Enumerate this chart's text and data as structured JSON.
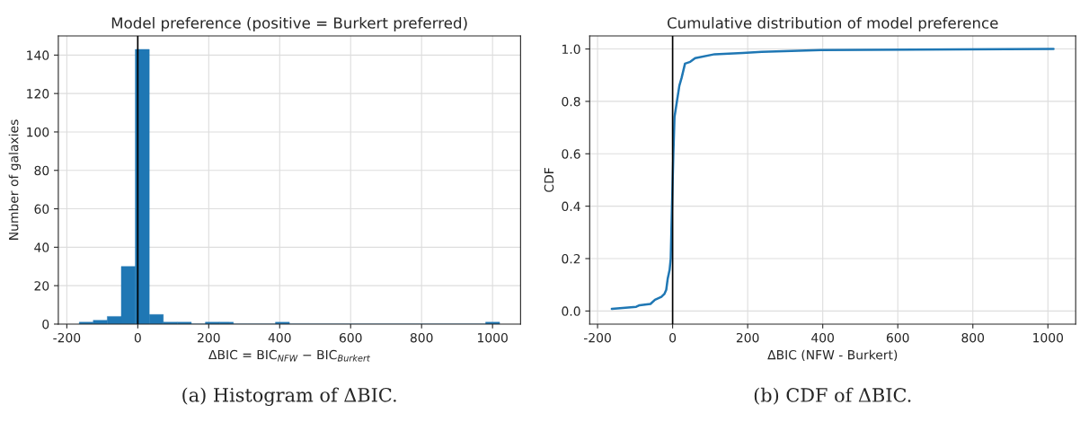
{
  "chart_data": [
    {
      "type": "histogram",
      "title": "Model preference (positive = Burkert preferred)",
      "xlabel": "ΔBIC = BIC$_{NFW}$ − BIC$_{Burkert}$",
      "ylabel": "Number of galaxies",
      "bins": [
        -165,
        -125.5,
        -86,
        -46.5,
        -7,
        32.5,
        72,
        111.5,
        151,
        190.5,
        230,
        269.5,
        309,
        348.5,
        388,
        427.5,
        467,
        506.5,
        546,
        585.5,
        625,
        664.5,
        704,
        743.5,
        783,
        822.5,
        862,
        901.5,
        941,
        980.5,
        1020
      ],
      "values": [
        1,
        2,
        4,
        30,
        143,
        5,
        1,
        1,
        0,
        1,
        1,
        0,
        0,
        0,
        1,
        0,
        0,
        0,
        0,
        0,
        0,
        0,
        0,
        0,
        0,
        0,
        0,
        0,
        0,
        1
      ],
      "color": "#1f77b4",
      "xlim": [
        -224,
        1079
      ],
      "ylim": [
        0,
        150
      ],
      "xticks": [
        -200,
        0,
        200,
        400,
        600,
        800,
        1000
      ],
      "yticks": [
        0,
        20,
        40,
        60,
        80,
        100,
        120,
        140
      ],
      "grid": true,
      "ref_lines": [
        {
          "axis": "x",
          "value": 0,
          "color": "#000000"
        }
      ],
      "annotations": [
        "(a) Histogram of ΔBIC."
      ]
    },
    {
      "type": "line",
      "title": "Cumulative distribution of model preference",
      "xlabel": "ΔBIC (NFW - Burkert)",
      "ylabel": "CDF",
      "x": [
        -162,
        -97,
        -88,
        -59,
        -47,
        -30,
        -22,
        -17,
        -13,
        -8,
        -5,
        -2,
        2,
        5,
        12,
        18,
        24,
        33,
        47,
        60,
        112,
        187,
        237,
        395,
        1015
      ],
      "values": [
        0.008,
        0.016,
        0.022,
        0.027,
        0.043,
        0.054,
        0.065,
        0.081,
        0.124,
        0.157,
        0.2,
        0.38,
        0.6,
        0.74,
        0.805,
        0.86,
        0.89,
        0.944,
        0.951,
        0.965,
        0.98,
        0.985,
        0.989,
        0.996,
        1.0
      ],
      "color": "#1f77b4",
      "xlim": [
        -221,
        1074
      ],
      "ylim": [
        -0.05,
        1.05
      ],
      "xticks": [
        -200,
        0,
        200,
        400,
        600,
        800,
        1000
      ],
      "yticks": [
        {
          "value": 0,
          "label": "0.0"
        },
        0.2,
        0.4,
        0.6,
        0.8,
        {
          "value": 1,
          "label": "1.0"
        }
      ],
      "grid": true,
      "ref_lines": [
        {
          "axis": "x",
          "value": 0,
          "color": "#000000"
        }
      ],
      "annotations": [
        "(b) CDF of ΔBIC."
      ]
    }
  ]
}
